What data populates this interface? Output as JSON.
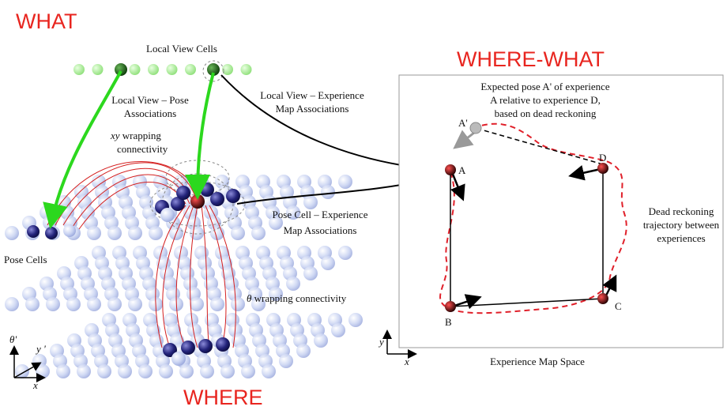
{
  "headings": {
    "what": "WHAT",
    "where": "WHERE",
    "where_what": "WHERE-WHAT"
  },
  "left": {
    "local_view_cells": "Local View Cells",
    "lv_pose": [
      "Local View – Pose",
      "Associations"
    ],
    "xy_wrap": {
      "symbol": "xy",
      "rest": "wrapping",
      "line2": "connectivity"
    },
    "lv_exp": [
      "Local View – Experience",
      "Map Associations"
    ],
    "pose_exp": [
      "Pose Cell – Experience",
      "Map Associations"
    ],
    "pose_cells": "Pose Cells",
    "theta_wrap": {
      "symbol": "θ",
      "rest": "wrapping connectivity"
    },
    "axes": {
      "theta": "θ'",
      "y": "y '",
      "x": "x"
    }
  },
  "experience_map": {
    "expected_pose": [
      "Expected pose A' of experience",
      "A relative to experience D,",
      "based on dead reckoning"
    ],
    "dead_reckoning": [
      "Dead reckoning",
      "trajectory between",
      "experiences"
    ],
    "nodes": {
      "a_prime": "A'",
      "a": "A",
      "b": "B",
      "c": "C",
      "d": "D"
    },
    "space_label": "Experience Map Space",
    "axes": {
      "y": "y",
      "x": "x"
    }
  }
}
